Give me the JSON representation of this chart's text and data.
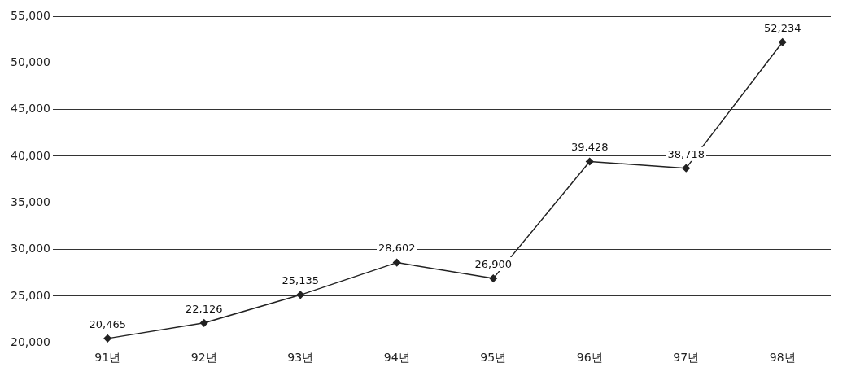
{
  "chart_data": {
    "type": "line",
    "categories": [
      "91년",
      "92년",
      "93년",
      "94년",
      "95년",
      "96년",
      "97년",
      "98년"
    ],
    "series": [
      {
        "color": "#222222",
        "values": [
          20465,
          22126,
          25135,
          28602,
          26900,
          39428,
          38718,
          52234
        ],
        "value_labels": [
          "20,465",
          "22,126",
          "25,135",
          "28,602",
          "26,900",
          "39,428",
          "38,718",
          "52,234"
        ]
      }
    ],
    "ylim": [
      20000,
      55000
    ],
    "yticks": [
      {
        "value": 20000,
        "label": "20,000"
      },
      {
        "value": 25000,
        "label": "25,000"
      },
      {
        "value": 30000,
        "label": "30,000"
      },
      {
        "value": 35000,
        "label": "35,000"
      },
      {
        "value": 40000,
        "label": "40,000"
      },
      {
        "value": 45000,
        "label": "45,000"
      },
      {
        "value": 50000,
        "label": "50,000"
      },
      {
        "value": 55000,
        "label": "55,000"
      }
    ],
    "grid": "y",
    "marker": "diamond",
    "line_style": "solid",
    "legend": false
  }
}
